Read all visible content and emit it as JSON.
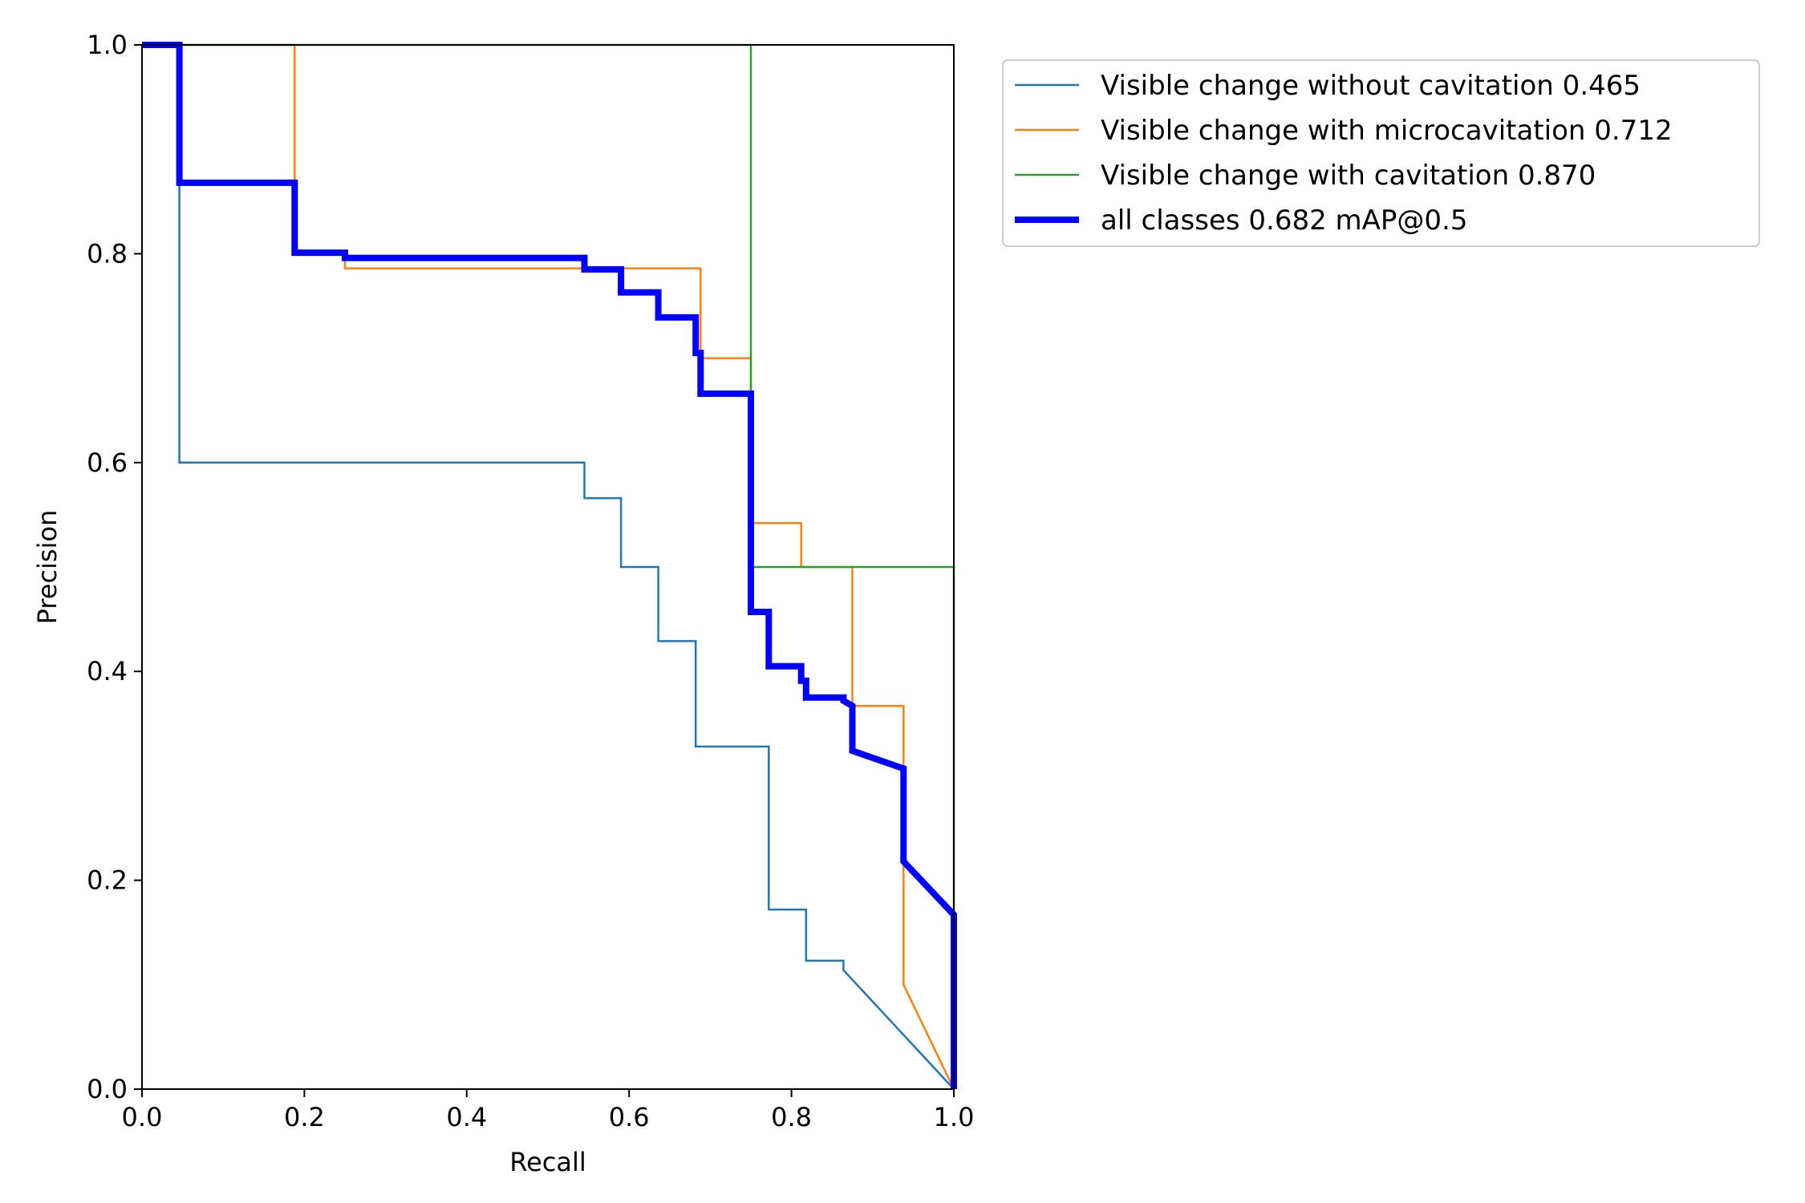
{
  "chart_data": {
    "type": "line",
    "title": "",
    "xlabel": "Recall",
    "ylabel": "Precision",
    "xlim": [
      0,
      1
    ],
    "ylim": [
      0,
      1
    ],
    "xticks": [
      "0.0",
      "0.2",
      "0.4",
      "0.6",
      "0.8",
      "1.0"
    ],
    "yticks": [
      "0.0",
      "0.2",
      "0.4",
      "0.6",
      "0.8",
      "1.0"
    ],
    "grid": false,
    "legend_position": "outside-upper-right",
    "series": [
      {
        "name": "Visible change without cavitation 0.465",
        "color": "#1f77b4",
        "width": 2.5,
        "points": [
          [
            0,
            1
          ],
          [
            0.046,
            1
          ],
          [
            0.046,
            0.6
          ],
          [
            0.545,
            0.6
          ],
          [
            0.545,
            0.566
          ],
          [
            0.59,
            0.566
          ],
          [
            0.59,
            0.5
          ],
          [
            0.636,
            0.5
          ],
          [
            0.636,
            0.429
          ],
          [
            0.682,
            0.429
          ],
          [
            0.682,
            0.328
          ],
          [
            0.772,
            0.328
          ],
          [
            0.772,
            0.172
          ],
          [
            0.818,
            0.172
          ],
          [
            0.818,
            0.123
          ],
          [
            0.864,
            0.123
          ],
          [
            0.864,
            0.114
          ],
          [
            1.0,
            0.0
          ]
        ]
      },
      {
        "name": "Visible change with microcavitation 0.712",
        "color": "#ff7f0e",
        "width": 2.5,
        "points": [
          [
            0,
            1
          ],
          [
            0.188,
            1
          ],
          [
            0.188,
            0.8
          ],
          [
            0.25,
            0.8
          ],
          [
            0.25,
            0.786
          ],
          [
            0.688,
            0.786
          ],
          [
            0.688,
            0.786
          ],
          [
            0.688,
            0.7
          ],
          [
            0.75,
            0.7
          ],
          [
            0.75,
            0.542
          ],
          [
            0.812,
            0.542
          ],
          [
            0.812,
            0.5
          ],
          [
            0.875,
            0.5
          ],
          [
            0.875,
            0.367
          ],
          [
            0.938,
            0.367
          ],
          [
            0.938,
            0.1
          ],
          [
            1.0,
            0.0
          ]
        ]
      },
      {
        "name": "Visible change with cavitation 0.870",
        "color": "#2ca02c",
        "width": 2.5,
        "points": [
          [
            0,
            1
          ],
          [
            0.75,
            1
          ],
          [
            0.75,
            0.5
          ],
          [
            1.0,
            0.5
          ],
          [
            1.0,
            0.0
          ]
        ]
      },
      {
        "name": "all classes 0.682 mAP@0.5",
        "color": "#0000ff",
        "width": 8,
        "points": [
          [
            0,
            1
          ],
          [
            0.046,
            1
          ],
          [
            0.046,
            0.868
          ],
          [
            0.188,
            0.868
          ],
          [
            0.188,
            0.801
          ],
          [
            0.25,
            0.801
          ],
          [
            0.25,
            0.796
          ],
          [
            0.545,
            0.796
          ],
          [
            0.545,
            0.785
          ],
          [
            0.59,
            0.785
          ],
          [
            0.59,
            0.763
          ],
          [
            0.636,
            0.763
          ],
          [
            0.636,
            0.739
          ],
          [
            0.682,
            0.739
          ],
          [
            0.682,
            0.705
          ],
          [
            0.688,
            0.705
          ],
          [
            0.688,
            0.666
          ],
          [
            0.75,
            0.666
          ],
          [
            0.75,
            0.457
          ],
          [
            0.772,
            0.457
          ],
          [
            0.772,
            0.405
          ],
          [
            0.812,
            0.405
          ],
          [
            0.812,
            0.391
          ],
          [
            0.818,
            0.391
          ],
          [
            0.818,
            0.375
          ],
          [
            0.864,
            0.375
          ],
          [
            0.864,
            0.372
          ],
          [
            0.875,
            0.367
          ],
          [
            0.875,
            0.324
          ],
          [
            0.938,
            0.307
          ],
          [
            0.938,
            0.218
          ],
          [
            1.0,
            0.167
          ],
          [
            1.0,
            0.0
          ]
        ]
      }
    ]
  }
}
